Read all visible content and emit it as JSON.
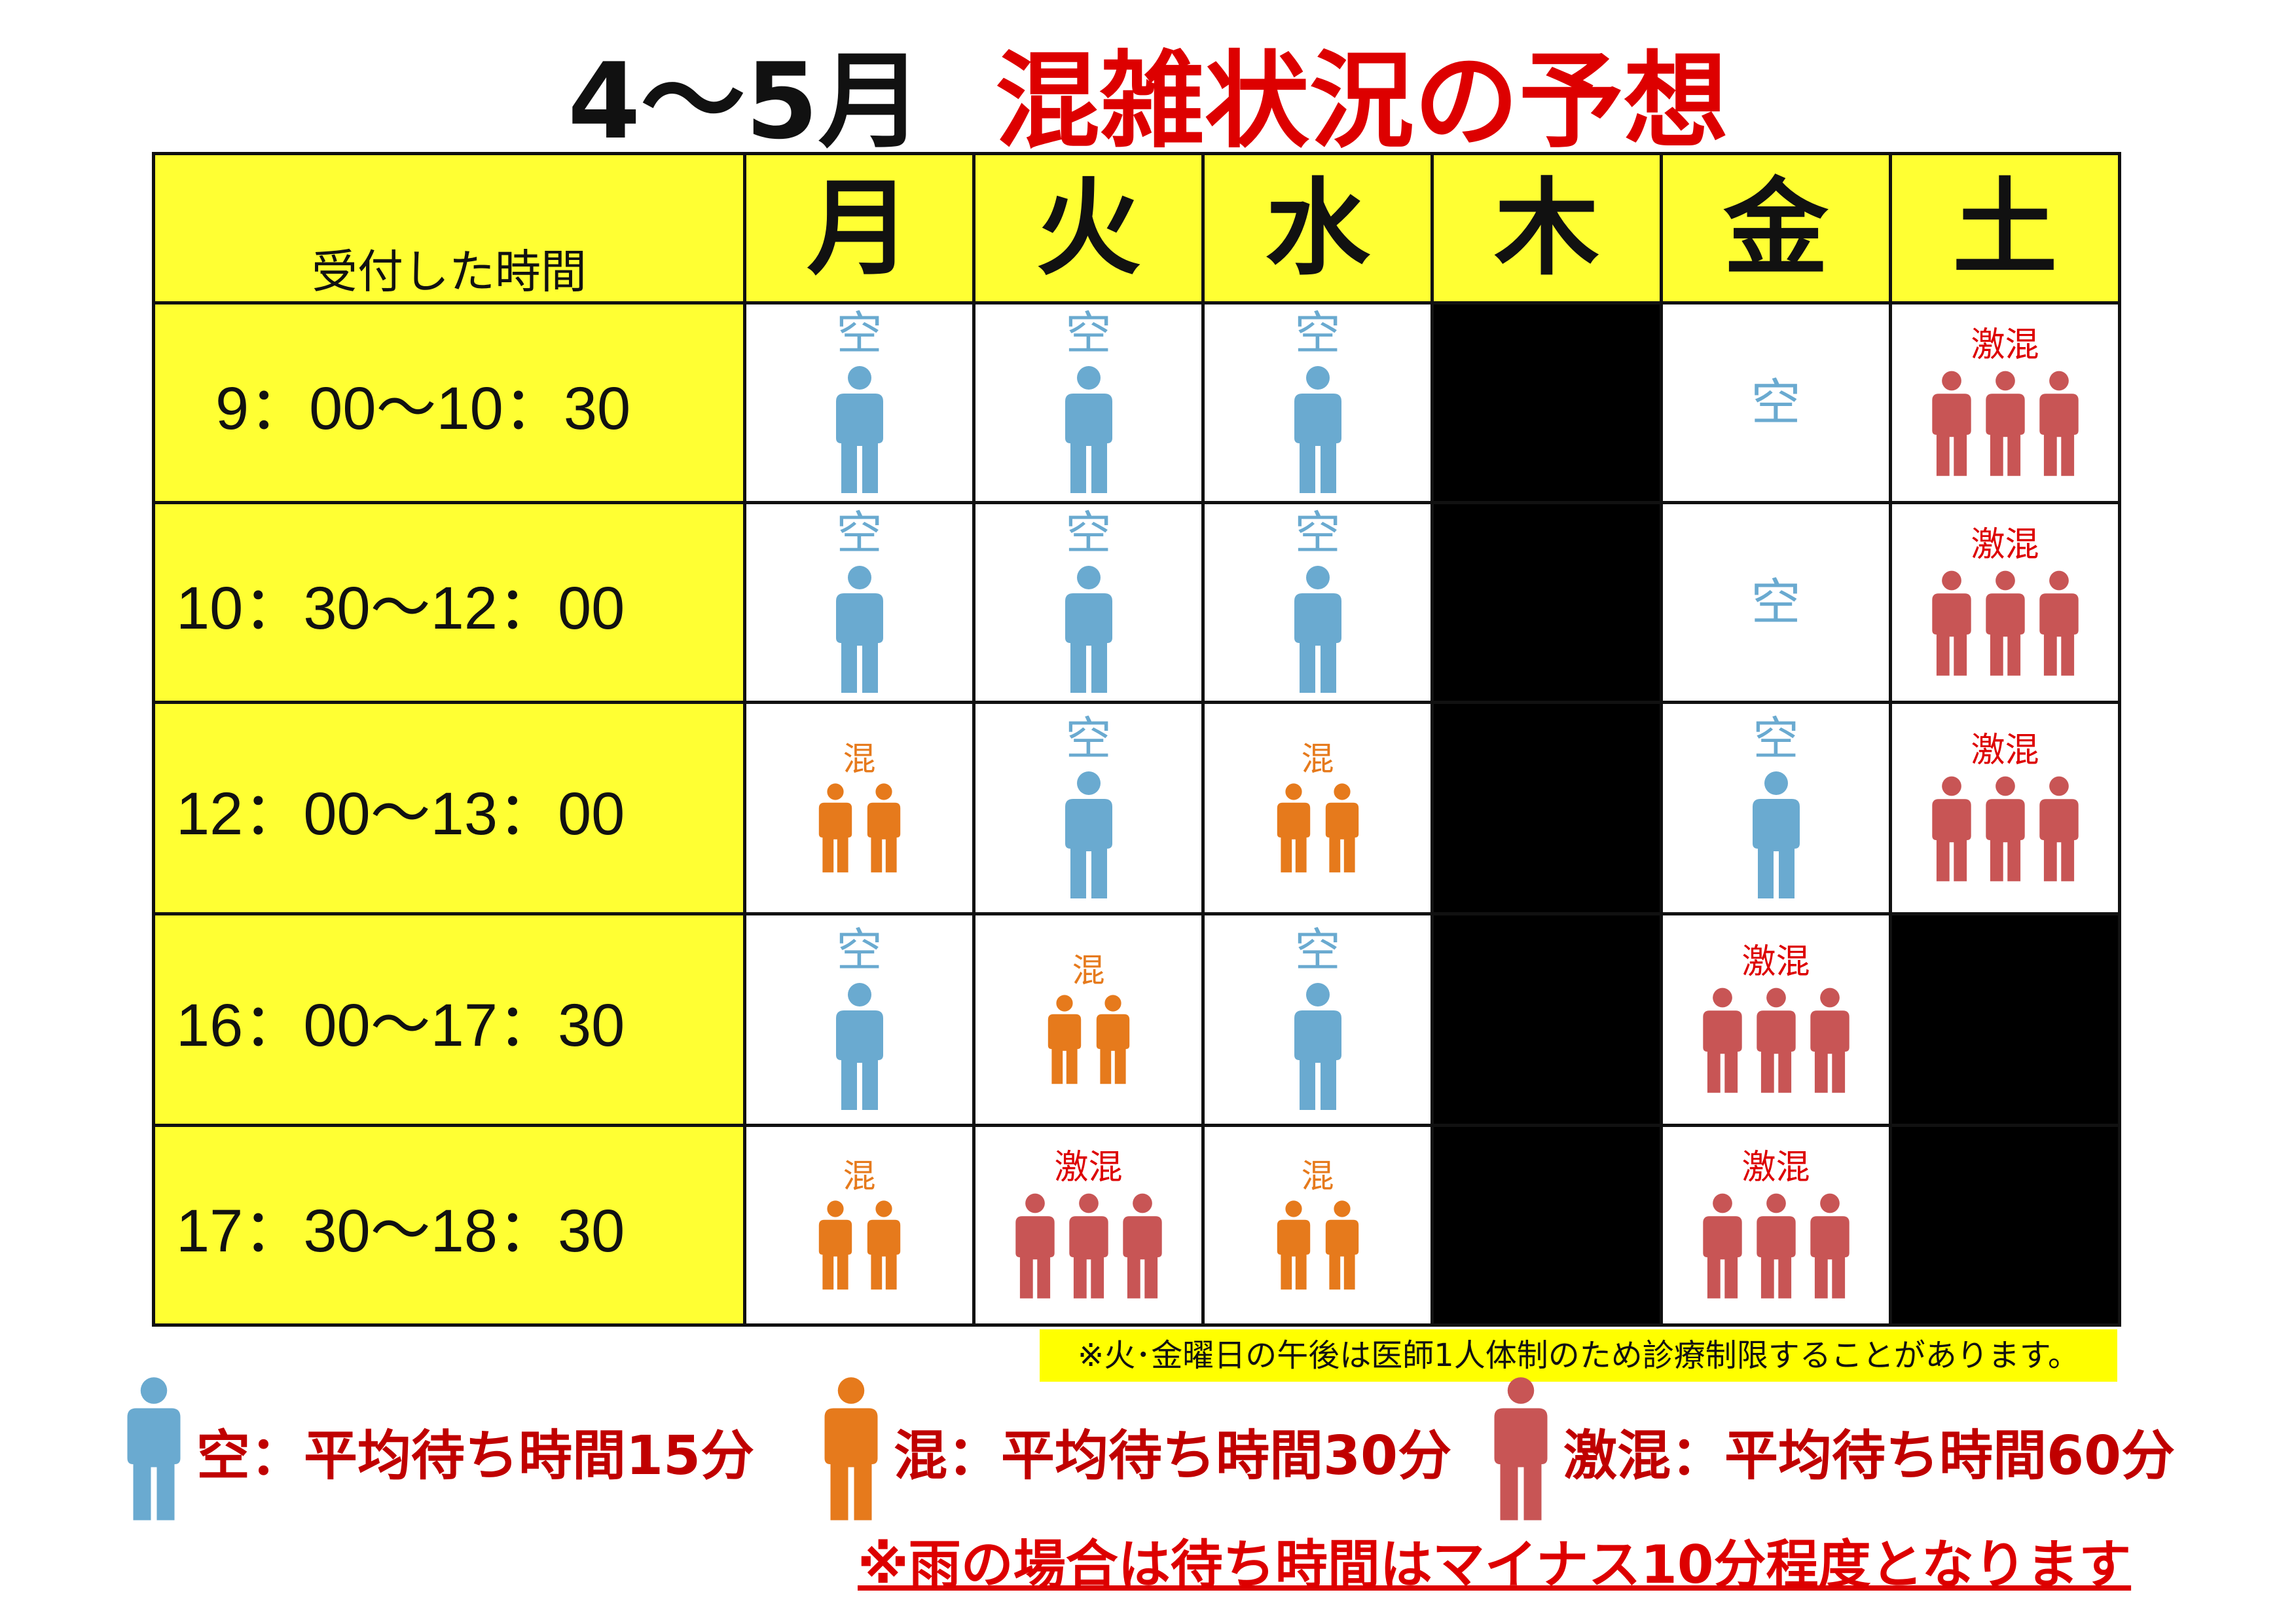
{
  "title": {
    "period": "4〜5月",
    "heading": "混雑状況の予想"
  },
  "colors": {
    "empty": "#6aaad0",
    "busy": "#e67a1c",
    "very_busy": "#c85555",
    "header_bg": "#ffff33",
    "title_red": "#dd0000",
    "closed": "#000000"
  },
  "table": {
    "header_label": "受付した時間",
    "days": [
      "月",
      "火",
      "水",
      "木",
      "金",
      "土"
    ],
    "status_labels": {
      "empty": "空",
      "busy": "混",
      "very_busy": "激混"
    },
    "rows": [
      {
        "time": "9：00〜10：30",
        "cells": [
          "empty",
          "empty",
          "empty",
          "closed",
          "empty-text",
          "very_busy"
        ]
      },
      {
        "time": "10：30〜12：00",
        "cells": [
          "empty",
          "empty",
          "empty",
          "closed",
          "empty-text",
          "very_busy"
        ]
      },
      {
        "time": "12：00〜13：00",
        "cells": [
          "busy",
          "empty",
          "busy",
          "closed",
          "empty",
          "very_busy"
        ]
      },
      {
        "time": "16：00〜17：30",
        "cells": [
          "empty",
          "busy",
          "empty",
          "closed",
          "very_busy",
          "closed"
        ]
      },
      {
        "time": "17：30〜18：30",
        "cells": [
          "busy",
          "very_busy",
          "busy",
          "closed",
          "very_busy",
          "closed"
        ]
      }
    ]
  },
  "note": "※火･金曜日の午後は医師1人体制のため診療制限することがあります。",
  "legend": [
    {
      "status": "empty",
      "text": "空：平均待ち時間15分"
    },
    {
      "status": "busy",
      "text": "混：平均待ち時間30分"
    },
    {
      "status": "very_busy",
      "text": "激混：平均待ち時間60分"
    }
  ],
  "rain_note": "※雨の場合は待ち時間はマイナス10分程度となります"
}
